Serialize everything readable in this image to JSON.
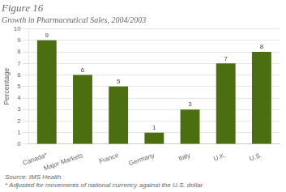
{
  "chart_data": {
    "type": "bar",
    "title": "Figure 16",
    "subtitle": "Growth in Pharmaceutical Sales, 2004/2003",
    "y_label": "Percentage",
    "categories": [
      "Canada*",
      "Major Markets",
      "France",
      "Germany",
      "Italy",
      "U.K.",
      "U.S."
    ],
    "values": [
      9,
      6,
      5,
      1,
      3,
      7,
      8
    ],
    "color": "#4a6e10",
    "ylim": [
      0,
      10
    ],
    "yticks": [
      0,
      1,
      2,
      3,
      4,
      5,
      6,
      7,
      8,
      9,
      10
    ],
    "grid": true,
    "data_labels": true,
    "annotations": [
      "Source: IMS Health",
      "* Adjusted for movements of national currency against the U.S. dollar."
    ]
  }
}
